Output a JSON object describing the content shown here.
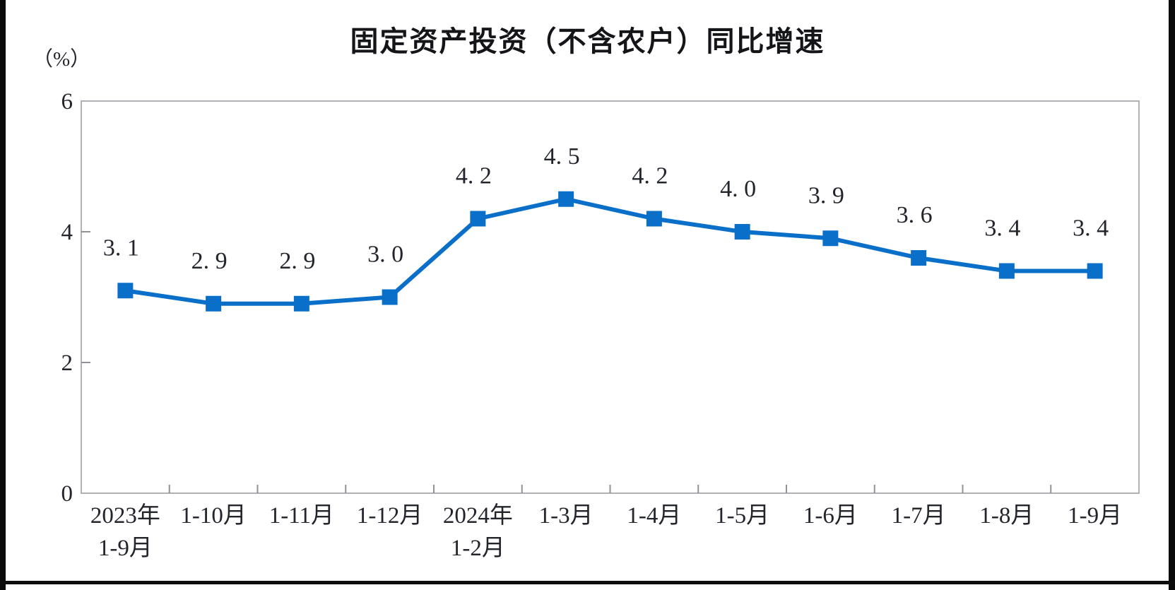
{
  "page": {
    "kind": "statistics-line-chart"
  },
  "chart_data": {
    "type": "line",
    "title": "固定资产投资（不含农户）同比增速",
    "unit_label": "（%）",
    "categories": [
      [
        "2023年",
        "1-9月"
      ],
      [
        "1-10月"
      ],
      [
        "1-11月"
      ],
      [
        "1-12月"
      ],
      [
        "2024年",
        "1-2月"
      ],
      [
        "1-3月"
      ],
      [
        "1-4月"
      ],
      [
        "1-5月"
      ],
      [
        "1-6月"
      ],
      [
        "1-7月"
      ],
      [
        "1-8月"
      ],
      [
        "1-9月"
      ]
    ],
    "series": [
      {
        "name": "固定资产投资（不含农户）同比增速",
        "values": [
          3.1,
          2.9,
          2.9,
          3.0,
          4.2,
          4.5,
          4.2,
          4.0,
          3.9,
          3.6,
          3.4,
          3.4
        ]
      }
    ],
    "xlabel": "",
    "ylabel": "（%）",
    "ylim": [
      0,
      6
    ],
    "yticks": [
      0,
      2,
      4,
      6
    ],
    "grid": false,
    "legend_position": "none",
    "marker": "square",
    "label_decimal_style": "spaced",
    "colors": {
      "series": "#0a6fc9",
      "frame": "#b0b0b5",
      "tick": "#8f9296",
      "text": "#23252d",
      "title": "#141519"
    }
  }
}
